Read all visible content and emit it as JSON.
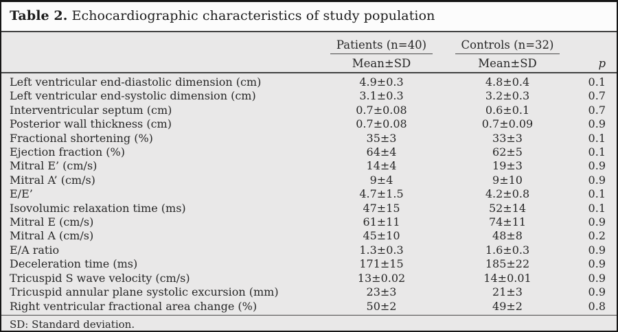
{
  "title": {
    "number": "Table 2.",
    "caption": "Echocardiographic characteristics of study population"
  },
  "table": {
    "group_headers": [
      {
        "label": "Patients (n=40)"
      },
      {
        "label": "Controls (n=32)"
      }
    ],
    "sub_headers": {
      "patients": "Mean±SD",
      "controls": "Mean±SD",
      "p": "p"
    },
    "rows": [
      {
        "label": "Left ventricular end-diastolic dimension (cm)",
        "patients": "4.9±0.3",
        "controls": "4.8±0.4",
        "p": "0.1"
      },
      {
        "label": "Left ventricular end-systolic dimension (cm)",
        "patients": "3.1±0.3",
        "controls": "3.2±0.3",
        "p": "0.7"
      },
      {
        "label": "Interventricular septum (cm)",
        "patients": "0.7±0.08",
        "controls": "0.6±0.1",
        "p": "0.7"
      },
      {
        "label": "Posterior wall thickness (cm)",
        "patients": "0.7±0.08",
        "controls": "0.7±0.09",
        "p": "0.9"
      },
      {
        "label": "Fractional shortening (%)",
        "patients": "35±3",
        "controls": "33±3",
        "p": "0.1"
      },
      {
        "label": "Ejection fraction (%)",
        "patients": "64±4",
        "controls": "62±5",
        "p": "0.1"
      },
      {
        "label": "Mitral E’ (cm/s)",
        "patients": "14±4",
        "controls": "19±3",
        "p": "0.9"
      },
      {
        "label": "Mitral A’ (cm/s)",
        "patients": "9±4",
        "controls": "9±10",
        "p": "0.9"
      },
      {
        "label": "E/E’",
        "patients": "4.7±1.5",
        "controls": "4.2±0.8",
        "p": "0.1"
      },
      {
        "label": "Isovolumic relaxation time (ms)",
        "patients": "47±15",
        "controls": "52±14",
        "p": "0.1"
      },
      {
        "label": "Mitral E (cm/s)",
        "patients": "61±11",
        "controls": "74±11",
        "p": "0.9"
      },
      {
        "label": "Mitral A (cm/s)",
        "patients": "45±10",
        "controls": "48±8",
        "p": "0.2"
      },
      {
        "label": "E/A ratio",
        "patients": "1.3±0.3",
        "controls": "1.6±0.3",
        "p": "0.9"
      },
      {
        "label": "Deceleration time (ms)",
        "patients": "171±15",
        "controls": "185±22",
        "p": "0.9"
      },
      {
        "label": "Tricuspid S wave velocity (cm/s)",
        "patients": "13±0.02",
        "controls": "14±0.01",
        "p": "0.9"
      },
      {
        "label": "Tricuspid annular plane systolic excursion (mm)",
        "patients": "23±3",
        "controls": "21±3",
        "p": "0.9"
      },
      {
        "label": "Right ventricular fractional area change (%)",
        "patients": "50±2",
        "controls": "49±2",
        "p": "0.8"
      }
    ],
    "footnote": "SD: Standard deviation."
  },
  "colors": {
    "table_background": "#e9e8e8",
    "title_background": "#fcfcfc",
    "outer_border": "#161616",
    "rule": "#3f3f3f",
    "text": "#262626"
  }
}
